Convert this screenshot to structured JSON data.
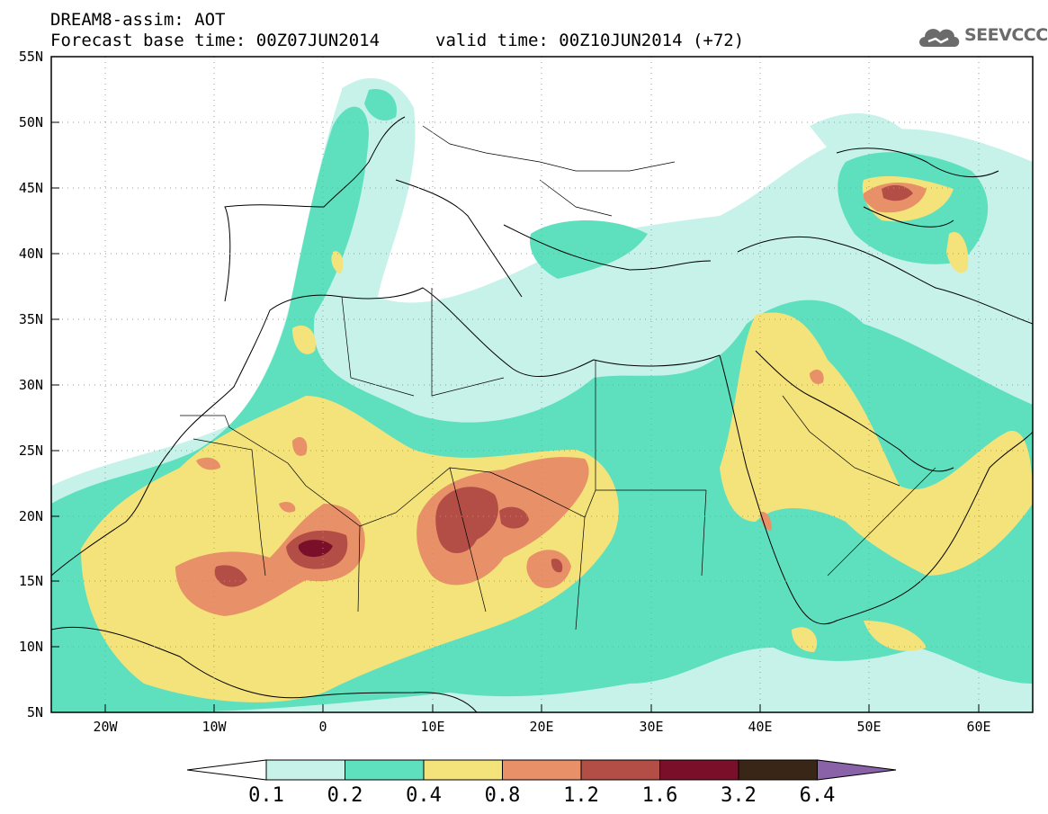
{
  "title": {
    "model": "DREAM8-assim: AOT",
    "base_time": "Forecast base time: 00Z07JUN2014",
    "valid_time": "valid time: 00Z10JUN2014 (+72)"
  },
  "logo": {
    "text": "SEEVCCC",
    "icon": "cloud-icon"
  },
  "map": {
    "lat_range": [
      5,
      55
    ],
    "lon_range": [
      -25,
      65
    ],
    "lat_labels": [
      "55N",
      "50N",
      "45N",
      "40N",
      "35N",
      "30N",
      "25N",
      "20N",
      "15N",
      "10N",
      "5N"
    ],
    "lon_labels": [
      "20W",
      "10W",
      "0",
      "10E",
      "20E",
      "30E",
      "40E",
      "50E",
      "60E"
    ],
    "grid": true
  },
  "colorbar": {
    "labels": [
      "0.1",
      "0.2",
      "0.4",
      "0.8",
      "1.2",
      "1.6",
      "3.2",
      "6.4"
    ],
    "colors": [
      "#ffffff",
      "#c6f2ea",
      "#5ee0be",
      "#f4e27a",
      "#e89068",
      "#b24e45",
      "#7a0f2a",
      "#3a2616",
      "#8a62a8"
    ]
  }
}
